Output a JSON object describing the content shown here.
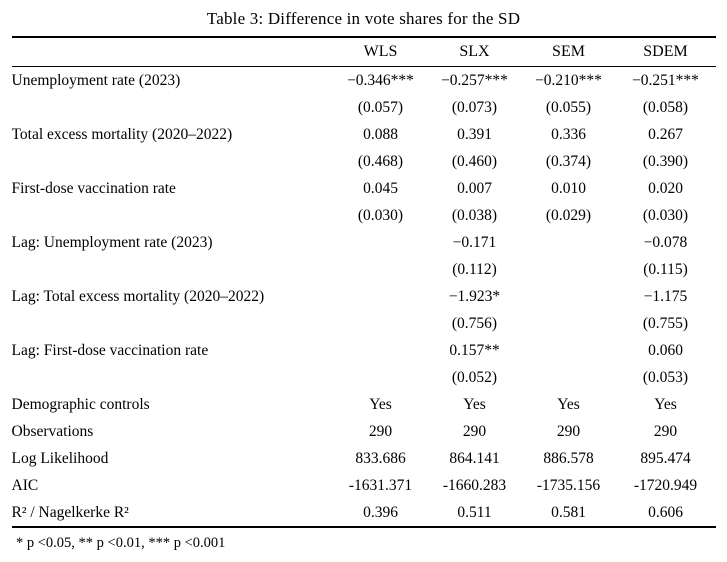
{
  "title": "Table 3: Difference in vote shares for the SD",
  "columns": [
    "WLS",
    "SLX",
    "SEM",
    "SDEM"
  ],
  "rows": [
    {
      "label": "Unemployment rate (2023)",
      "values": [
        "−0.346***",
        "−0.257***",
        "−0.210***",
        "−0.251***"
      ],
      "se": [
        "(0.057)",
        "(0.073)",
        "(0.055)",
        "(0.058)"
      ]
    },
    {
      "label": "Total excess mortality (2020–2022)",
      "values": [
        "0.088",
        "0.391",
        "0.336",
        "0.267"
      ],
      "se": [
        "(0.468)",
        "(0.460)",
        "(0.374)",
        "(0.390)"
      ]
    },
    {
      "label": "First-dose vaccination rate",
      "values": [
        "0.045",
        "0.007",
        "0.010",
        "0.020"
      ],
      "se": [
        "(0.030)",
        "(0.038)",
        "(0.029)",
        "(0.030)"
      ]
    },
    {
      "label": "Lag: Unemployment rate (2023)",
      "values": [
        "",
        "−0.171",
        "",
        "−0.078"
      ],
      "se": [
        "",
        "(0.112)",
        "",
        "(0.115)"
      ]
    },
    {
      "label": "Lag: Total excess mortality (2020–2022)",
      "values": [
        "",
        "−1.923*",
        "",
        "−1.175"
      ],
      "se": [
        "",
        "(0.756)",
        "",
        "(0.755)"
      ]
    },
    {
      "label": "Lag: First-dose vaccination rate",
      "values": [
        "",
        "0.157**",
        "",
        "0.060"
      ],
      "se": [
        "",
        "(0.052)",
        "",
        "(0.053)"
      ]
    }
  ],
  "summary": [
    {
      "label": "Demographic controls",
      "values": [
        "Yes",
        "Yes",
        "Yes",
        "Yes"
      ]
    },
    {
      "label": "Observations",
      "values": [
        "290",
        "290",
        "290",
        "290"
      ]
    },
    {
      "label": "Log Likelihood",
      "values": [
        "833.686",
        "864.141",
        "886.578",
        "895.474"
      ]
    },
    {
      "label": "AIC",
      "values": [
        "-1631.371",
        "-1660.283",
        "-1735.156",
        "-1720.949"
      ]
    },
    {
      "label": "R² / Nagelkerke R²",
      "values": [
        "0.396",
        "0.511",
        "0.581",
        "0.606"
      ]
    }
  ],
  "footnote": "* p <0.05, ** p <0.01, *** p <0.001"
}
